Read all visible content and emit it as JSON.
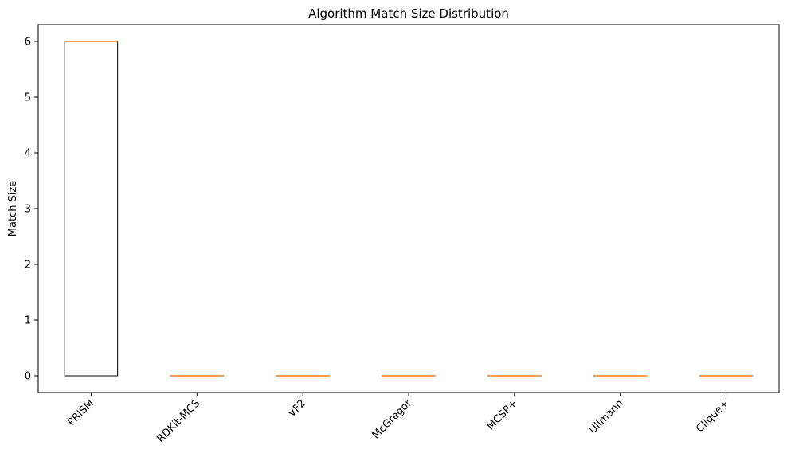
{
  "chart_data": {
    "type": "box",
    "title": "Algorithm Match Size Distribution",
    "xlabel": "",
    "ylabel": "Match Size",
    "ylim": [
      -0.3,
      6.3
    ],
    "yticks": [
      0,
      1,
      2,
      3,
      4,
      5,
      6
    ],
    "grid": false,
    "colors": {
      "box": "#000000",
      "median": "#ff7f0e"
    },
    "categories": [
      "PRISM",
      "RDKit-MCS",
      "VF2",
      "McGregor",
      "MCSP+",
      "Ullmann",
      "Clique+"
    ],
    "boxes": [
      {
        "category": "PRISM",
        "min": 0,
        "q1": 0,
        "median": 6,
        "q3": 6,
        "max": 6
      },
      {
        "category": "RDKit-MCS",
        "min": 0,
        "q1": 0,
        "median": 0,
        "q3": 0,
        "max": 0
      },
      {
        "category": "VF2",
        "min": 0,
        "q1": 0,
        "median": 0,
        "q3": 0,
        "max": 0
      },
      {
        "category": "McGregor",
        "min": 0,
        "q1": 0,
        "median": 0,
        "q3": 0,
        "max": 0
      },
      {
        "category": "MCSP+",
        "min": 0,
        "q1": 0,
        "median": 0,
        "q3": 0,
        "max": 0
      },
      {
        "category": "Ullmann",
        "min": 0,
        "q1": 0,
        "median": 0,
        "q3": 0,
        "max": 0
      },
      {
        "category": "Clique+",
        "min": 0,
        "q1": 0,
        "median": 0,
        "q3": 0,
        "max": 0
      }
    ]
  }
}
